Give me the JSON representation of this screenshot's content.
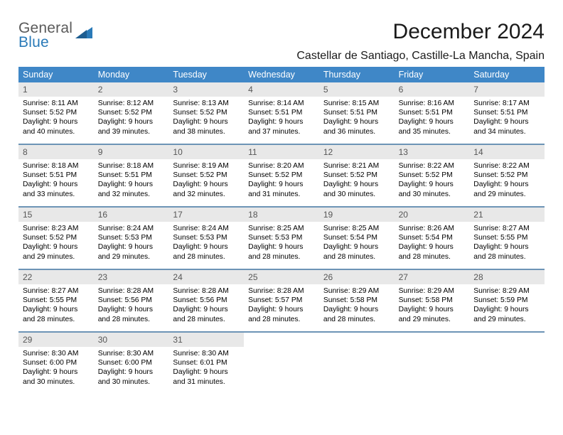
{
  "logo": {
    "top": "General",
    "bottom": "Blue"
  },
  "title": "December 2024",
  "subtitle": "Castellar de Santiago, Castille-La Mancha, Spain",
  "colors": {
    "header_bar": "#3f87c7",
    "week_divider": "#6d94b6",
    "daynum_bg": "#e8e8e8",
    "logo_gray": "#5a5a5a",
    "logo_blue": "#2a7ab8"
  },
  "dow": [
    "Sunday",
    "Monday",
    "Tuesday",
    "Wednesday",
    "Thursday",
    "Friday",
    "Saturday"
  ],
  "weeks": [
    [
      {
        "n": "1",
        "sr": "8:11 AM",
        "ss": "5:52 PM",
        "dl": "9 hours and 40 minutes."
      },
      {
        "n": "2",
        "sr": "8:12 AM",
        "ss": "5:52 PM",
        "dl": "9 hours and 39 minutes."
      },
      {
        "n": "3",
        "sr": "8:13 AM",
        "ss": "5:52 PM",
        "dl": "9 hours and 38 minutes."
      },
      {
        "n": "4",
        "sr": "8:14 AM",
        "ss": "5:51 PM",
        "dl": "9 hours and 37 minutes."
      },
      {
        "n": "5",
        "sr": "8:15 AM",
        "ss": "5:51 PM",
        "dl": "9 hours and 36 minutes."
      },
      {
        "n": "6",
        "sr": "8:16 AM",
        "ss": "5:51 PM",
        "dl": "9 hours and 35 minutes."
      },
      {
        "n": "7",
        "sr": "8:17 AM",
        "ss": "5:51 PM",
        "dl": "9 hours and 34 minutes."
      }
    ],
    [
      {
        "n": "8",
        "sr": "8:18 AM",
        "ss": "5:51 PM",
        "dl": "9 hours and 33 minutes."
      },
      {
        "n": "9",
        "sr": "8:18 AM",
        "ss": "5:51 PM",
        "dl": "9 hours and 32 minutes."
      },
      {
        "n": "10",
        "sr": "8:19 AM",
        "ss": "5:52 PM",
        "dl": "9 hours and 32 minutes."
      },
      {
        "n": "11",
        "sr": "8:20 AM",
        "ss": "5:52 PM",
        "dl": "9 hours and 31 minutes."
      },
      {
        "n": "12",
        "sr": "8:21 AM",
        "ss": "5:52 PM",
        "dl": "9 hours and 30 minutes."
      },
      {
        "n": "13",
        "sr": "8:22 AM",
        "ss": "5:52 PM",
        "dl": "9 hours and 30 minutes."
      },
      {
        "n": "14",
        "sr": "8:22 AM",
        "ss": "5:52 PM",
        "dl": "9 hours and 29 minutes."
      }
    ],
    [
      {
        "n": "15",
        "sr": "8:23 AM",
        "ss": "5:52 PM",
        "dl": "9 hours and 29 minutes."
      },
      {
        "n": "16",
        "sr": "8:24 AM",
        "ss": "5:53 PM",
        "dl": "9 hours and 29 minutes."
      },
      {
        "n": "17",
        "sr": "8:24 AM",
        "ss": "5:53 PM",
        "dl": "9 hours and 28 minutes."
      },
      {
        "n": "18",
        "sr": "8:25 AM",
        "ss": "5:53 PM",
        "dl": "9 hours and 28 minutes."
      },
      {
        "n": "19",
        "sr": "8:25 AM",
        "ss": "5:54 PM",
        "dl": "9 hours and 28 minutes."
      },
      {
        "n": "20",
        "sr": "8:26 AM",
        "ss": "5:54 PM",
        "dl": "9 hours and 28 minutes."
      },
      {
        "n": "21",
        "sr": "8:27 AM",
        "ss": "5:55 PM",
        "dl": "9 hours and 28 minutes."
      }
    ],
    [
      {
        "n": "22",
        "sr": "8:27 AM",
        "ss": "5:55 PM",
        "dl": "9 hours and 28 minutes."
      },
      {
        "n": "23",
        "sr": "8:28 AM",
        "ss": "5:56 PM",
        "dl": "9 hours and 28 minutes."
      },
      {
        "n": "24",
        "sr": "8:28 AM",
        "ss": "5:56 PM",
        "dl": "9 hours and 28 minutes."
      },
      {
        "n": "25",
        "sr": "8:28 AM",
        "ss": "5:57 PM",
        "dl": "9 hours and 28 minutes."
      },
      {
        "n": "26",
        "sr": "8:29 AM",
        "ss": "5:58 PM",
        "dl": "9 hours and 28 minutes."
      },
      {
        "n": "27",
        "sr": "8:29 AM",
        "ss": "5:58 PM",
        "dl": "9 hours and 29 minutes."
      },
      {
        "n": "28",
        "sr": "8:29 AM",
        "ss": "5:59 PM",
        "dl": "9 hours and 29 minutes."
      }
    ],
    [
      {
        "n": "29",
        "sr": "8:30 AM",
        "ss": "6:00 PM",
        "dl": "9 hours and 30 minutes."
      },
      {
        "n": "30",
        "sr": "8:30 AM",
        "ss": "6:00 PM",
        "dl": "9 hours and 30 minutes."
      },
      {
        "n": "31",
        "sr": "8:30 AM",
        "ss": "6:01 PM",
        "dl": "9 hours and 31 minutes."
      },
      null,
      null,
      null,
      null
    ]
  ],
  "labels": {
    "sunrise": "Sunrise:",
    "sunset": "Sunset:",
    "daylight": "Daylight:"
  }
}
